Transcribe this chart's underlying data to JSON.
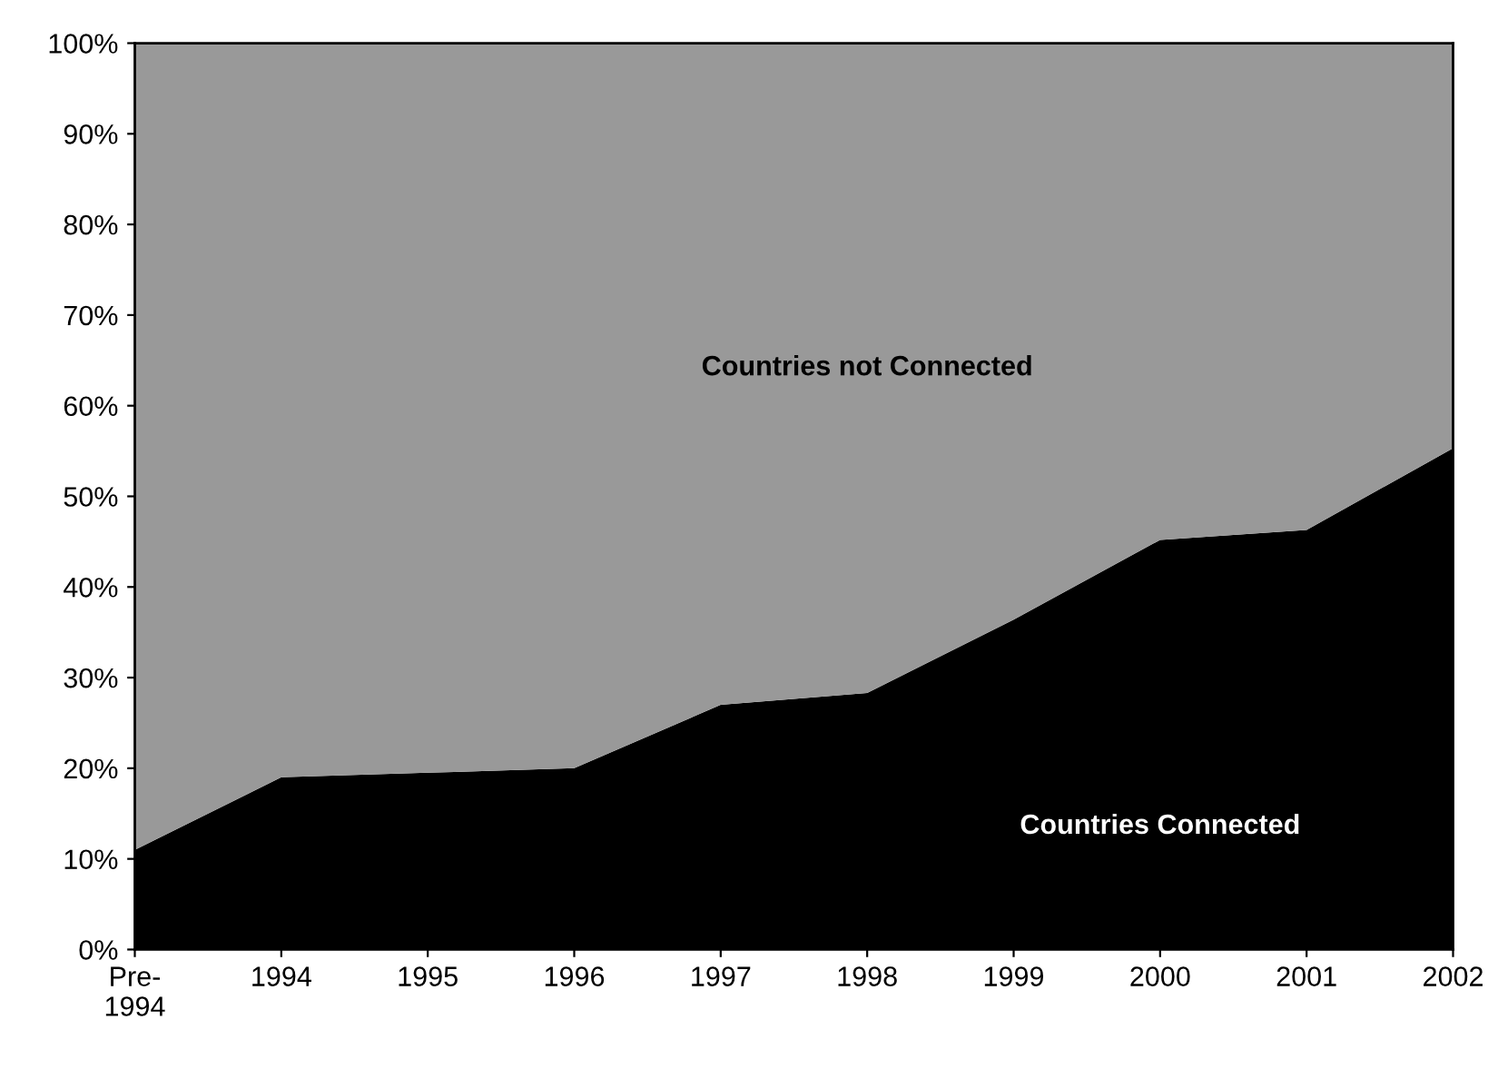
{
  "chart_data": {
    "type": "area",
    "stacked": true,
    "categories": [
      "Pre-\n1994",
      "1994",
      "1995",
      "1996",
      "1997",
      "1998",
      "1999",
      "2000",
      "2001",
      "2002"
    ],
    "series": [
      {
        "name": "Countries Connected",
        "color": "#000000",
        "values": [
          11,
          19,
          19.5,
          20,
          27,
          28.3,
          36.4,
          45.2,
          46.3,
          55.3
        ]
      },
      {
        "name": "Countries not Connected",
        "color": "#999999",
        "values": [
          89,
          81,
          80.5,
          80,
          73,
          71.7,
          63.6,
          54.8,
          53.7,
          44.7
        ]
      }
    ],
    "ylim": [
      0,
      100
    ],
    "yticks": [
      {
        "value": 0,
        "label": "0%"
      },
      {
        "value": 10,
        "label": "10%"
      },
      {
        "value": 20,
        "label": "20%"
      },
      {
        "value": 30,
        "label": "30%"
      },
      {
        "value": 40,
        "label": "40%"
      },
      {
        "value": 50,
        "label": "50%"
      },
      {
        "value": 60,
        "label": "60%"
      },
      {
        "value": 70,
        "label": "70%"
      },
      {
        "value": 80,
        "label": "80%"
      },
      {
        "value": 90,
        "label": "90%"
      },
      {
        "value": 100,
        "label": "100%"
      }
    ],
    "grid": false,
    "legend": false
  }
}
